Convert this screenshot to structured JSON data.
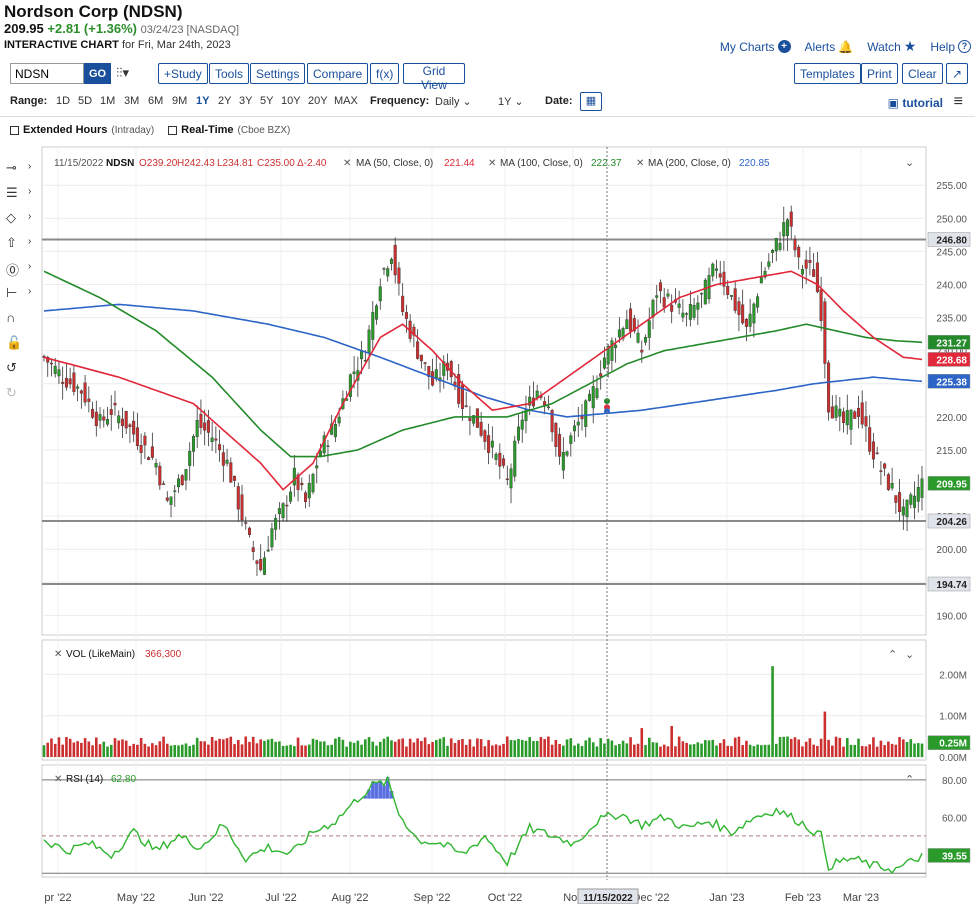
{
  "header": {
    "title": "Nordson Corp (NDSN)",
    "last": "209.95",
    "change": "+2.81 (+1.36%)",
    "meta": "03/24/23 [NASDAQ]",
    "sub_bold": "INTERACTIVE CHART",
    "sub_rest": "for Fri, Mar 24th, 2023"
  },
  "toplinks": {
    "mycharts": "My Charts",
    "alerts": "Alerts",
    "watch": "Watch",
    "help": "Help"
  },
  "toolbar": {
    "symbol": "NDSN",
    "go": "GO",
    "chart_type_icon": "candlestick-icon",
    "study": "+Study",
    "tools": "Tools",
    "settings": "Settings",
    "compare": "Compare",
    "fx": "f(x)",
    "gridview": "Grid View",
    "templates": "Templates",
    "print": "Print",
    "clear": "Clear",
    "expand": "↗"
  },
  "range": {
    "label": "Range:",
    "options": [
      "1D",
      "5D",
      "1M",
      "3M",
      "6M",
      "9M",
      "1Y",
      "2Y",
      "3Y",
      "5Y",
      "10Y",
      "20Y",
      "MAX"
    ],
    "active": "1Y",
    "freq_label": "Frequency:",
    "freq_value": "Daily",
    "period_value": "1Y",
    "date_label": "Date:",
    "tutorial": "tutorial"
  },
  "options": {
    "ext": "Extended Hours",
    "ext_sm": "(Intraday)",
    "rt": "Real-Time",
    "rt_sm": "(Cboe BZX)"
  },
  "legend": {
    "date": "11/15/2022",
    "sym": "NDSN",
    "o": "O239.20",
    "h": "H242.43",
    "l": "L234.81",
    "c": "C235.00",
    "d": "Δ-2.40",
    "ma50": "MA (50, Close, 0)",
    "ma50v": "221.44",
    "ma100": "MA (100, Close, 0)",
    "ma100v": "222.37",
    "ma200": "MA (200, Close, 0)",
    "ma200v": "220.85"
  },
  "vol_legend": {
    "label": "VOL (LikeMain)",
    "value": "366,300"
  },
  "rsi_legend": {
    "label": "RSI (14)",
    "value": "62.80"
  },
  "price_ticks": [
    "255.00",
    "250.00",
    "245.00",
    "240.00",
    "235.00",
    "230.00",
    "225.00",
    "220.00",
    "215.00",
    "210.00",
    "205.00",
    "200.00",
    "195.00",
    "190.00"
  ],
  "vol_ticks": [
    "2.00M",
    "1.00M",
    "0.00M"
  ],
  "rsi_ticks": [
    "80.00",
    "60.00",
    "40.00"
  ],
  "x_labels": [
    "pr '22",
    "May '22",
    "Jun '22",
    "Jul '22",
    "Aug '22",
    "Sep '22",
    "Oct '22",
    "Nov",
    "Dec '22",
    "Jan '23",
    "Feb '23",
    "Mar '23"
  ],
  "crosshair_date": "11/15/2022",
  "price_badges": {
    "hline_top": "246.80",
    "ma100": "231.27",
    "ma50": "228.68",
    "ma200": "225.38",
    "last": "209.95",
    "hline_mid": "204.26",
    "hline_low": "194.74",
    "vol_last": "0.25M",
    "rsi_last": "39.55"
  },
  "colors": {
    "up": "#2a9a2a",
    "down": "#cc2f2f",
    "ma50": "#e0283a",
    "ma100": "#238a2a",
    "ma200": "#2d64c8",
    "accent": "#1a4f9c"
  },
  "chart_data": {
    "type": "candlestick",
    "ylim": [
      190,
      257
    ],
    "hlines": [
      246.8,
      204.26,
      194.74
    ],
    "close_anchors": [
      [
        0,
        229
      ],
      [
        5,
        226
      ],
      [
        10,
        224
      ],
      [
        15,
        219
      ],
      [
        18,
        221
      ],
      [
        22,
        219
      ],
      [
        26,
        216
      ],
      [
        30,
        213
      ],
      [
        33,
        207
      ],
      [
        37,
        211
      ],
      [
        41,
        219
      ],
      [
        45,
        217
      ],
      [
        49,
        213
      ],
      [
        52,
        207
      ],
      [
        55,
        201
      ],
      [
        58,
        197
      ],
      [
        61,
        203
      ],
      [
        64,
        206
      ],
      [
        67,
        211
      ],
      [
        70,
        207
      ],
      [
        74,
        215
      ],
      [
        78,
        219
      ],
      [
        82,
        226
      ],
      [
        86,
        230
      ],
      [
        90,
        241
      ],
      [
        93,
        245
      ],
      [
        96,
        236
      ],
      [
        100,
        230
      ],
      [
        104,
        225
      ],
      [
        108,
        228
      ],
      [
        112,
        222
      ],
      [
        116,
        219
      ],
      [
        120,
        215
      ],
      [
        124,
        210
      ],
      [
        128,
        220
      ],
      [
        132,
        224
      ],
      [
        135,
        222
      ],
      [
        138,
        213
      ],
      [
        142,
        218
      ],
      [
        146,
        222
      ],
      [
        150,
        229
      ],
      [
        153,
        232
      ],
      [
        156,
        235
      ],
      [
        160,
        230
      ],
      [
        164,
        239
      ],
      [
        168,
        237
      ],
      [
        172,
        235
      ],
      [
        176,
        238
      ],
      [
        180,
        243
      ],
      [
        184,
        238
      ],
      [
        188,
        233
      ],
      [
        192,
        241
      ],
      [
        196,
        246
      ],
      [
        199,
        250
      ],
      [
        202,
        243
      ],
      [
        206,
        242
      ],
      [
        208,
        236
      ],
      [
        210,
        222
      ],
      [
        214,
        219
      ],
      [
        218,
        221
      ],
      [
        221,
        216
      ],
      [
        224,
        212
      ],
      [
        227,
        209
      ],
      [
        230,
        205
      ],
      [
        233,
        208
      ],
      [
        235,
        209.95
      ]
    ],
    "ma50_anchors": [
      [
        0,
        229
      ],
      [
        20,
        226
      ],
      [
        40,
        222
      ],
      [
        58,
        213
      ],
      [
        64,
        209
      ],
      [
        72,
        213
      ],
      [
        80,
        222
      ],
      [
        90,
        232
      ],
      [
        96,
        234
      ],
      [
        104,
        230
      ],
      [
        112,
        225
      ],
      [
        120,
        221
      ],
      [
        130,
        222
      ],
      [
        140,
        226
      ],
      [
        150,
        230
      ],
      [
        160,
        234
      ],
      [
        170,
        238
      ],
      [
        180,
        240
      ],
      [
        190,
        241
      ],
      [
        200,
        242
      ],
      [
        207,
        240
      ],
      [
        214,
        236
      ],
      [
        222,
        232
      ],
      [
        230,
        229
      ],
      [
        235,
        228.68
      ]
    ],
    "ma100_anchors": [
      [
        0,
        242
      ],
      [
        15,
        238
      ],
      [
        30,
        233
      ],
      [
        45,
        226
      ],
      [
        58,
        218
      ],
      [
        66,
        214
      ],
      [
        74,
        214
      ],
      [
        84,
        215
      ],
      [
        96,
        218
      ],
      [
        110,
        220
      ],
      [
        124,
        220
      ],
      [
        136,
        222
      ],
      [
        146,
        225
      ],
      [
        156,
        228
      ],
      [
        166,
        230
      ],
      [
        176,
        231
      ],
      [
        186,
        232
      ],
      [
        196,
        233
      ],
      [
        204,
        234
      ],
      [
        212,
        233
      ],
      [
        220,
        232
      ],
      [
        228,
        231.5
      ],
      [
        235,
        231.27
      ]
    ],
    "ma200_anchors": [
      [
        0,
        236
      ],
      [
        20,
        237
      ],
      [
        40,
        236
      ],
      [
        60,
        234
      ],
      [
        75,
        232
      ],
      [
        90,
        229
      ],
      [
        104,
        226
      ],
      [
        118,
        223
      ],
      [
        130,
        221
      ],
      [
        140,
        220
      ],
      [
        150,
        220.5
      ],
      [
        160,
        221
      ],
      [
        172,
        222
      ],
      [
        184,
        223
      ],
      [
        196,
        224
      ],
      [
        206,
        225
      ],
      [
        214,
        225.5
      ],
      [
        222,
        226
      ],
      [
        230,
        225.6
      ],
      [
        235,
        225.38
      ]
    ],
    "volume_spikes": [
      [
        195,
        2200000
      ],
      [
        209,
        1100000
      ],
      [
        160,
        700000
      ],
      [
        168,
        750000
      ]
    ],
    "rsi_anchors": [
      [
        0,
        48
      ],
      [
        6,
        42
      ],
      [
        12,
        46
      ],
      [
        18,
        40
      ],
      [
        24,
        52
      ],
      [
        30,
        42
      ],
      [
        36,
        50
      ],
      [
        42,
        44
      ],
      [
        48,
        56
      ],
      [
        54,
        38
      ],
      [
        60,
        44
      ],
      [
        66,
        40
      ],
      [
        72,
        52
      ],
      [
        78,
        58
      ],
      [
        84,
        70
      ],
      [
        88,
        77
      ],
      [
        92,
        79
      ],
      [
        95,
        62
      ],
      [
        100,
        48
      ],
      [
        106,
        46
      ],
      [
        112,
        40
      ],
      [
        118,
        50
      ],
      [
        124,
        36
      ],
      [
        130,
        54
      ],
      [
        136,
        50
      ],
      [
        142,
        46
      ],
      [
        148,
        58
      ],
      [
        154,
        62
      ],
      [
        160,
        56
      ],
      [
        166,
        60
      ],
      [
        172,
        54
      ],
      [
        178,
        58
      ],
      [
        184,
        52
      ],
      [
        190,
        60
      ],
      [
        196,
        64
      ],
      [
        202,
        58
      ],
      [
        208,
        50
      ],
      [
        210,
        34
      ],
      [
        216,
        38
      ],
      [
        222,
        34
      ],
      [
        228,
        32
      ],
      [
        232,
        36
      ],
      [
        235,
        39.55
      ]
    ]
  }
}
